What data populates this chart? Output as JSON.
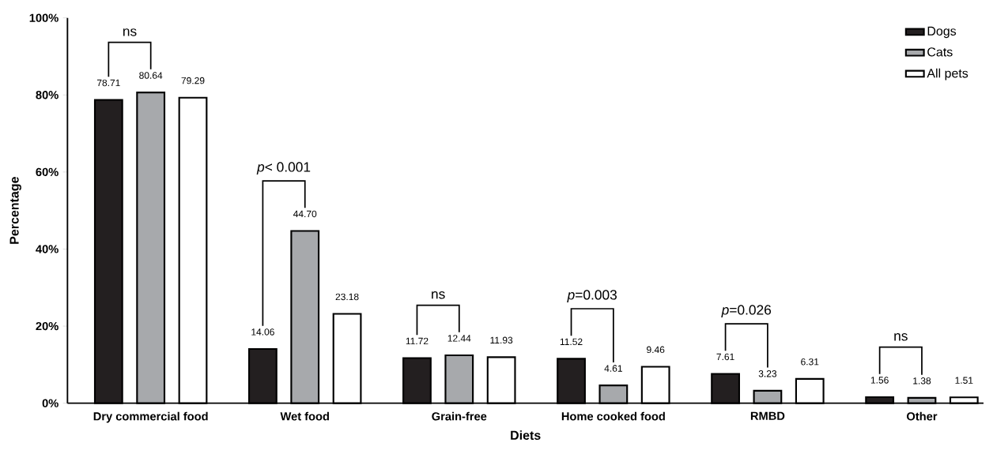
{
  "chart_data": {
    "type": "bar",
    "xlabel": "Diets",
    "ylabel": "Percentage",
    "categories": [
      "Dry commercial food",
      "Wet food",
      "Grain-free",
      "Home cooked food",
      "RMBD",
      "Other"
    ],
    "series": [
      {
        "name": "Dogs",
        "color": "#231f20",
        "values": [
          78.71,
          14.06,
          11.72,
          11.52,
          7.61,
          1.56
        ],
        "value_labels": [
          "78.71",
          "14.06",
          "11.72",
          "11.52",
          "7.61",
          "1.56"
        ]
      },
      {
        "name": "Cats",
        "color": "#a7a9ac",
        "values": [
          80.64,
          44.7,
          12.44,
          4.61,
          3.23,
          1.38
        ],
        "value_labels": [
          "80.64",
          "44.70",
          "12.44",
          "4.61",
          "3.23",
          "1.38"
        ]
      },
      {
        "name": "All pets",
        "color": "#ffffff",
        "values": [
          79.29,
          23.18,
          11.93,
          9.46,
          6.31,
          1.51
        ],
        "value_labels": [
          "79.29",
          "23.18",
          "11.93",
          "9.46",
          "6.31",
          "1.51"
        ]
      }
    ],
    "ylim": [
      0,
      100
    ],
    "yticks": [
      {
        "value": 0,
        "label": "0%"
      },
      {
        "value": 20,
        "label": "20%"
      },
      {
        "value": 40,
        "label": "40%"
      },
      {
        "value": 60,
        "label": "60%"
      },
      {
        "value": 80,
        "label": "80%"
      },
      {
        "value": 100,
        "label": "100%"
      }
    ],
    "legend": "top right",
    "annotations": [
      "ns",
      "*p*< 0.001",
      "ns",
      "*p*=0.003",
      "*p*=0.026",
      "ns"
    ]
  }
}
